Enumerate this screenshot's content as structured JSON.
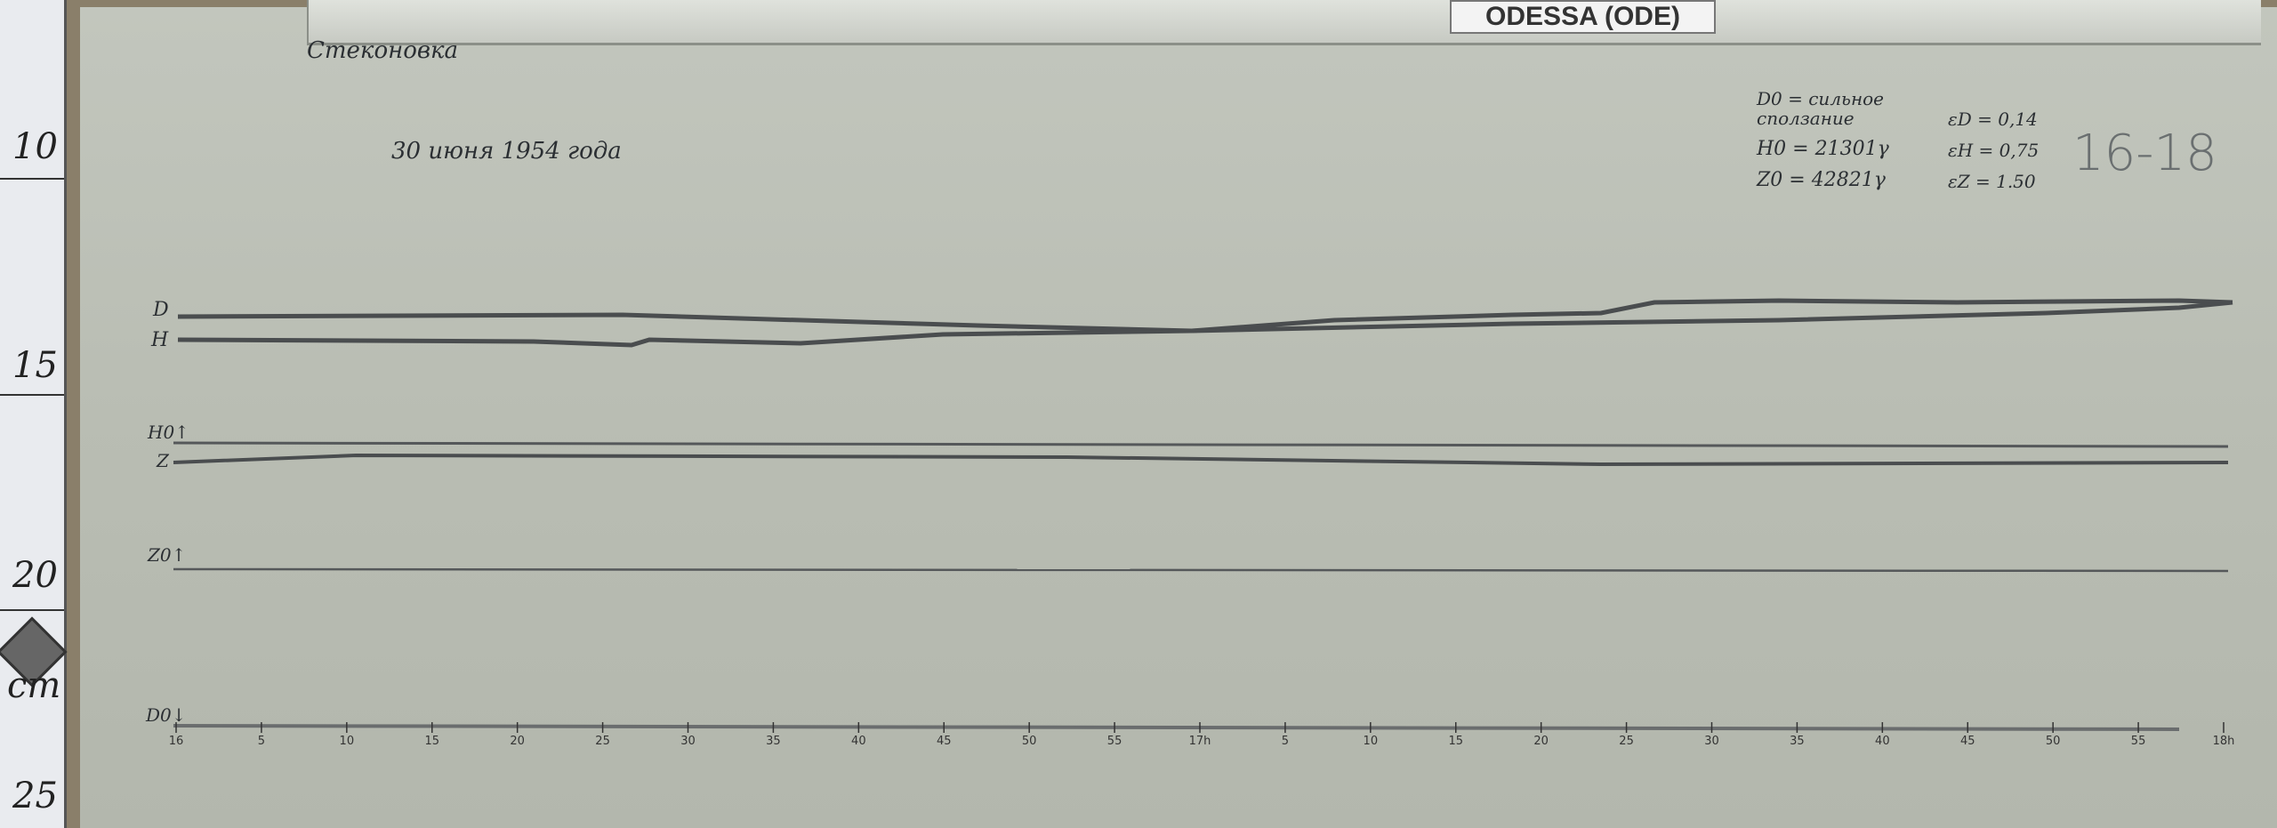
{
  "ruler": {
    "labels": [
      "10",
      "15",
      "20",
      "cm",
      "25"
    ]
  },
  "station_label": "ODESSA (ODE)",
  "header": {
    "station_name": "Стеконовка",
    "date": "30 июня 1954 года"
  },
  "parameters": {
    "d0": "D0 = сильное сползание",
    "h0": "H0 = 21301γ",
    "z0": "Z0 = 42821γ",
    "ed": "εD = 0,14",
    "eh": "εH = 0,75",
    "ez": "εZ = 1.50"
  },
  "hours_range": "16-18",
  "trace_labels": {
    "d": "D",
    "h": "H",
    "h0": "H0↑",
    "z": "Z",
    "z0": "Z0↑",
    "d0": "D0↓"
  },
  "time_axis": {
    "ticks": [
      "16",
      "5",
      "10",
      "15",
      "20",
      "25",
      "30",
      "35",
      "40",
      "45",
      "50",
      "55",
      "17h",
      "5",
      "10",
      "15",
      "20",
      "25",
      "30",
      "35",
      "40",
      "45",
      "50",
      "55",
      "18h"
    ]
  }
}
